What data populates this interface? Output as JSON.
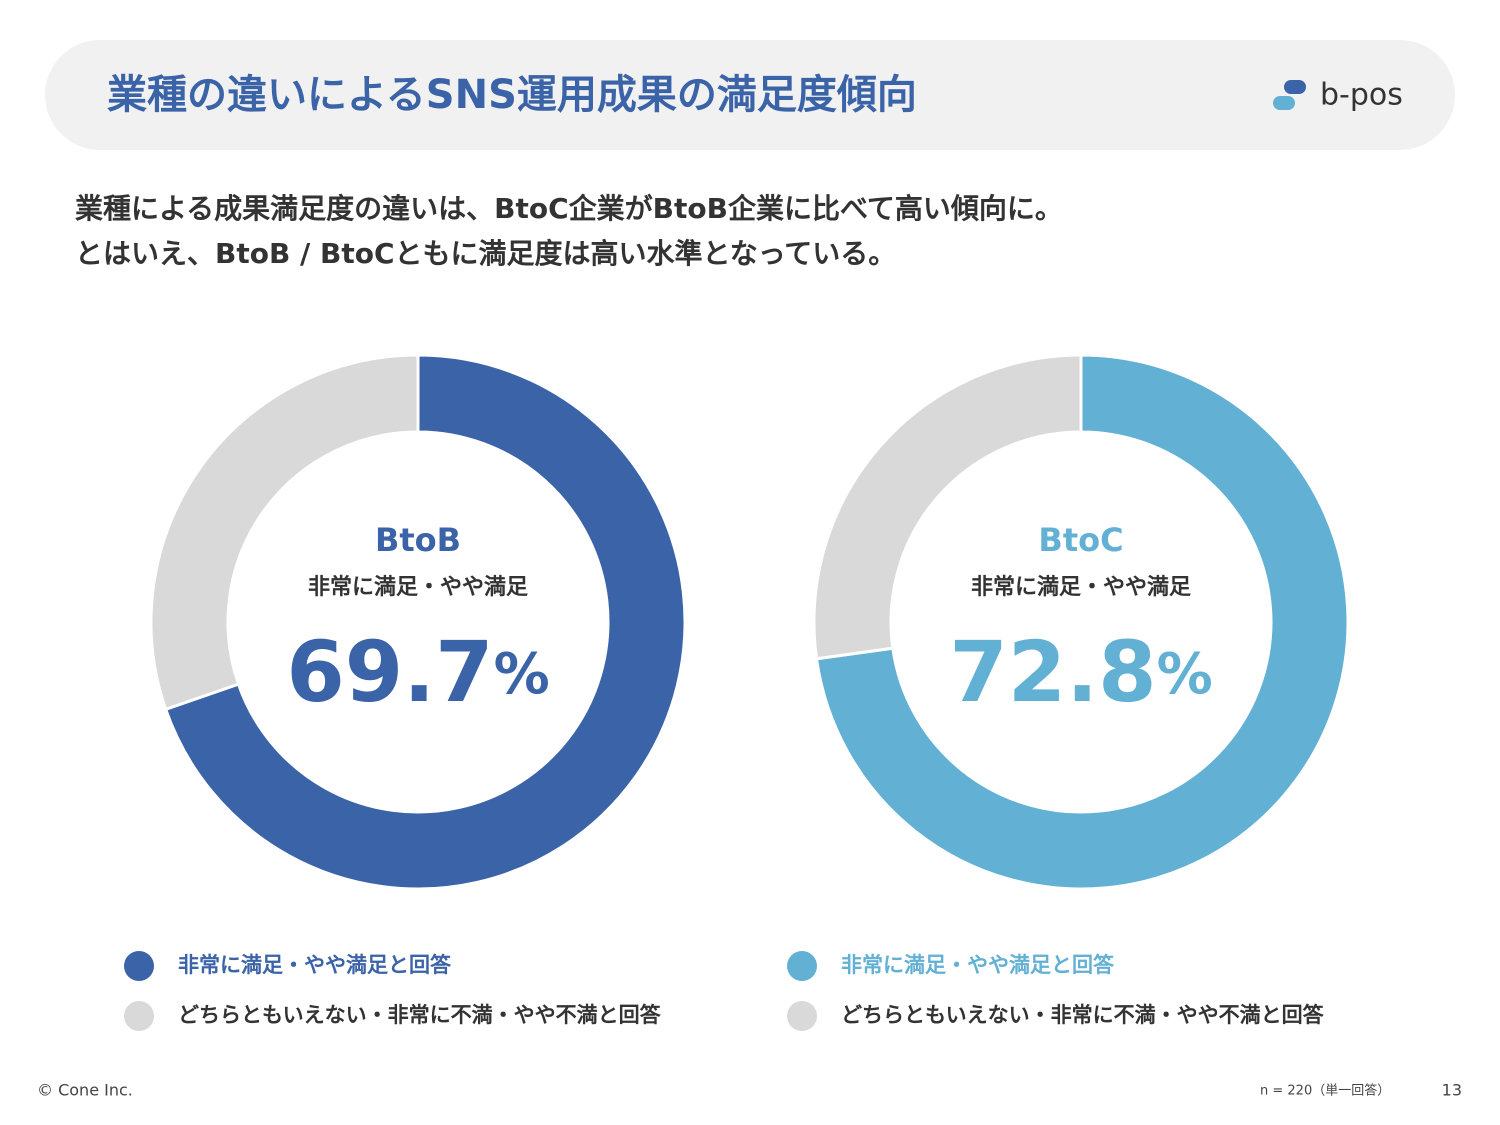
{
  "header": {
    "title": "業種の違いによるSNS運用成果の満足度傾向",
    "logo": "b-pos"
  },
  "lead": [
    "業種による成果満足度の違いは、BtoC企業がBtoB企業に比べて高い傾向に。",
    "とはいえ、BtoB / BtoCともに満足度は高い水準となっている。"
  ],
  "chart_data": [
    {
      "type": "pie",
      "title": "BtoB",
      "subtitle": "非常に満足・やや満足",
      "categories": [
        "非常に満足・やや満足と回答",
        "どちらともいえない・非常に不満・やや不満と回答"
      ],
      "values": [
        69.7,
        30.3
      ],
      "value_labels": [
        "69.7%",
        null
      ],
      "colors": [
        "#3b63a8",
        "#d9d9d9"
      ]
    },
    {
      "type": "pie",
      "title": "BtoC",
      "subtitle": "非常に満足・やや満足",
      "categories": [
        "非常に満足・やや満足と回答",
        "どちらともいえない・非常に不満・やや不満と回答"
      ],
      "values": [
        72.8,
        27.2
      ],
      "value_labels": [
        "72.8%",
        null
      ],
      "colors": [
        "#62b0d4",
        "#d9d9d9"
      ]
    }
  ],
  "footer": {
    "copyright": "© Cone Inc.",
    "note": "n = 220（単一回答）",
    "page": "13"
  }
}
